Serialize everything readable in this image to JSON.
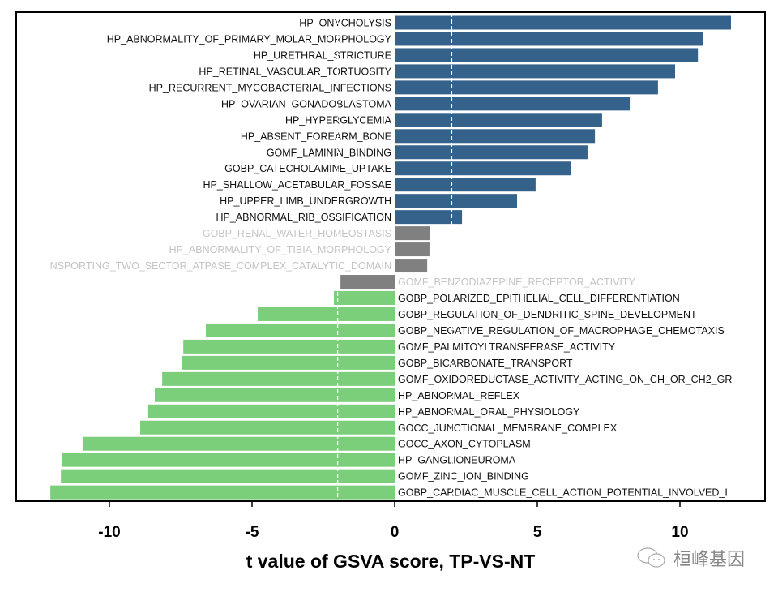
{
  "chart_data": {
    "type": "bar",
    "orientation": "horizontal",
    "xlabel": "t value of GSVA score, TP-VS-NT",
    "xlim": [
      -13.3,
      13.1
    ],
    "xticks": [
      -10,
      -5,
      0,
      5,
      10
    ],
    "threshold_lines": [
      -2,
      2
    ],
    "grid": false,
    "colors": {
      "up": "#35628a",
      "down": "#7ccf7a",
      "ns": "#808080",
      "ns_label": "#c4c4c4",
      "label": "#111111"
    },
    "bars": [
      {
        "label": "HP_ONYCHOLYSIS",
        "value": 11.79,
        "group": "up"
      },
      {
        "label": "HP_ABNORMALITY_OF_PRIMARY_MOLAR_MORPHOLOGY",
        "value": 10.8,
        "group": "up"
      },
      {
        "label": "HP_URETHRAL_STRICTURE",
        "value": 10.63,
        "group": "up"
      },
      {
        "label": "HP_RETINAL_VASCULAR_TORTUOSITY",
        "value": 9.83,
        "group": "up"
      },
      {
        "label": "HP_RECURRENT_MYCOBACTERIAL_INFECTIONS",
        "value": 9.23,
        "group": "up"
      },
      {
        "label": "HP_OVARIAN_GONADOBLASTOMA",
        "value": 8.24,
        "group": "up"
      },
      {
        "label": "HP_HYPERGLYCEMIA",
        "value": 7.27,
        "group": "up"
      },
      {
        "label": "HP_ABSENT_FOREARM_BONE",
        "value": 7.02,
        "group": "up"
      },
      {
        "label": "GOMF_LAMININ_BINDING",
        "value": 6.76,
        "group": "up"
      },
      {
        "label": "GOBP_CATECHOLAMINE_UPTAKE",
        "value": 6.19,
        "group": "up"
      },
      {
        "label": "HP_SHALLOW_ACETABULAR_FOSSAE",
        "value": 4.94,
        "group": "up"
      },
      {
        "label": "HP_UPPER_LIMB_UNDERGROWTH",
        "value": 4.29,
        "group": "up"
      },
      {
        "label": "HP_ABNORMAL_RIB_OSSIFICATION",
        "value": 2.36,
        "group": "up"
      },
      {
        "label": "GOBP_RENAL_WATER_HOMEOSTASIS",
        "value": 1.25,
        "group": "ns"
      },
      {
        "label": "HP_ABNORMALITY_OF_TIBIA_MORPHOLOGY",
        "value": 1.22,
        "group": "ns"
      },
      {
        "label": "NSPORTING_TWO_SECTOR_ATPASE_COMPLEX_CATALYTIC_DOMAIN",
        "value": 1.14,
        "group": "ns"
      },
      {
        "label": "GOMF_BENZODIAZEPINE_RECEPTOR_ACTIVITY",
        "value": -1.9,
        "group": "ns"
      },
      {
        "label": "GOBP_POLARIZED_EPITHELIAL_CELL_DIFFERENTIATION",
        "value": -2.13,
        "group": "down"
      },
      {
        "label": "GOBP_REGULATION_OF_DENDRITIC_SPINE_DEVELOPMENT",
        "value": -4.8,
        "group": "down"
      },
      {
        "label": "GOBP_NEGATIVE_REGULATION_OF_MACROPHAGE_CHEMOTAXIS",
        "value": -6.62,
        "group": "down"
      },
      {
        "label": "GOMF_PALMITOYLTRANSFERASE_ACTIVITY",
        "value": -7.41,
        "group": "down"
      },
      {
        "label": "GOBP_BICARBONATE_TRANSPORT",
        "value": -7.47,
        "group": "down"
      },
      {
        "label": "GOMF_OXIDOREDUCTASE_ACTIVITY_ACTING_ON_CH_OR_CH2_GR",
        "value": -8.15,
        "group": "down"
      },
      {
        "label": "HP_ABNORMAL_REFLEX",
        "value": -8.41,
        "group": "down"
      },
      {
        "label": "HP_ABNORMAL_ORAL_PHYSIOLOGY",
        "value": -8.64,
        "group": "down"
      },
      {
        "label": "GOCC_JUNCTIONAL_MEMBRANE_COMPLEX",
        "value": -8.92,
        "group": "down"
      },
      {
        "label": "GOCC_AXON_CYTOPLASM",
        "value": -10.94,
        "group": "down"
      },
      {
        "label": "HP_GANGLIONEUROMA",
        "value": -11.65,
        "group": "down"
      },
      {
        "label": "GOMF_ZINC_ION_BINDING",
        "value": -11.7,
        "group": "down"
      },
      {
        "label": "GOBP_CARDIAC_MUSCLE_CELL_ACTION_POTENTIAL_INVOLVED_I",
        "value": -12.07,
        "group": "down"
      }
    ]
  },
  "watermark": {
    "text": "桓峰基因",
    "icon": "wechat-icon"
  }
}
